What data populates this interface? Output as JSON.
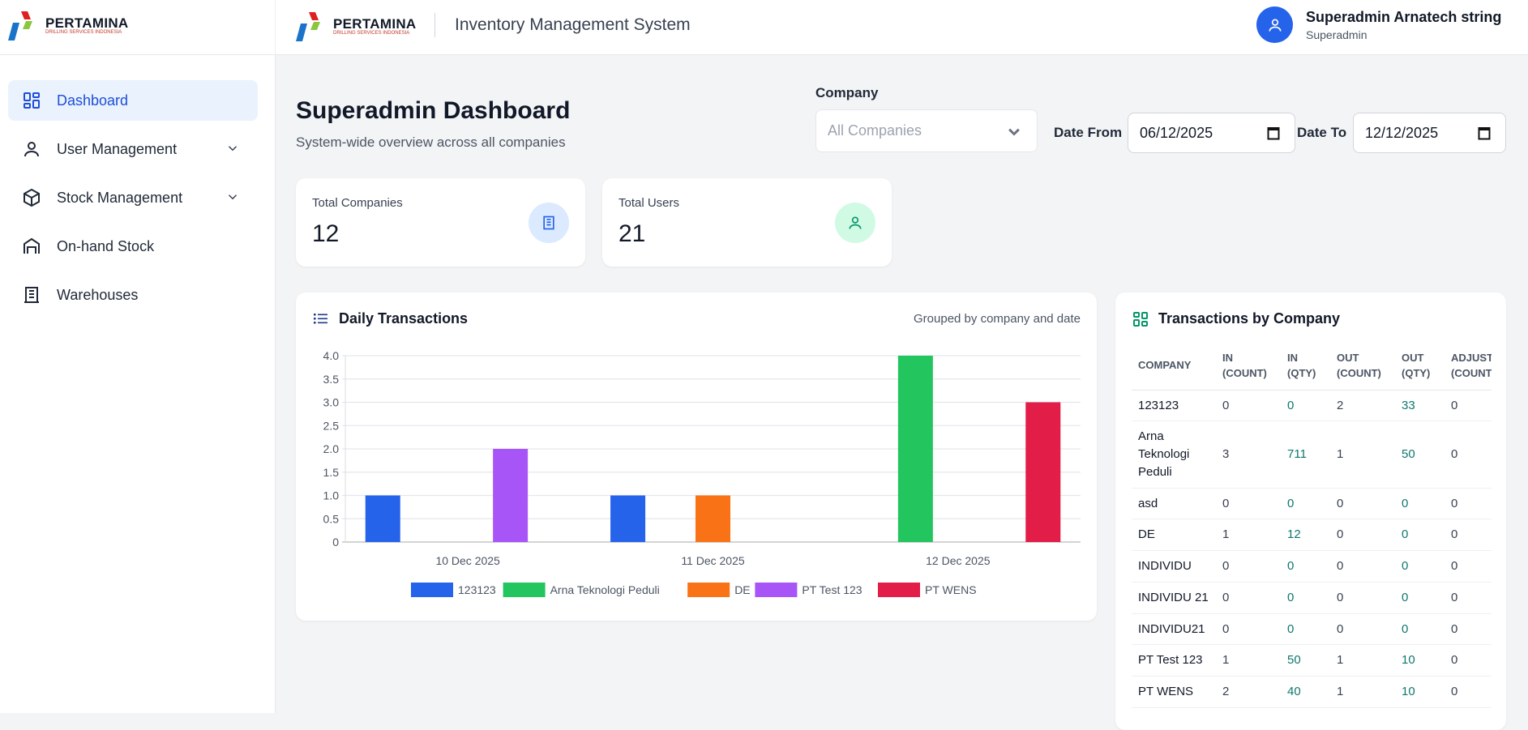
{
  "brand": {
    "name": "PERTAMINA",
    "tagline": "DRILLING SERVICES INDONESIA"
  },
  "header": {
    "app_title": "Inventory Management System",
    "user_name": "Superadmin Arnatech string",
    "user_role": "Superadmin"
  },
  "sidebar": {
    "items": [
      {
        "label": "Dashboard",
        "icon": "dashboard-icon",
        "active": true
      },
      {
        "label": "User Management",
        "icon": "user-icon",
        "expandable": true
      },
      {
        "label": "Stock Management",
        "icon": "box-icon",
        "expandable": true
      },
      {
        "label": "On-hand Stock",
        "icon": "warehouse-icon"
      },
      {
        "label": "Warehouses",
        "icon": "building-icon"
      }
    ]
  },
  "page": {
    "title": "Superadmin Dashboard",
    "subtitle": "System-wide overview across all companies"
  },
  "filters": {
    "company_label": "Company",
    "company_value": "All Companies",
    "date_from_label": "Date From",
    "date_from": "06/12/2025",
    "date_to_label": "Date To",
    "date_to": "12/12/2025"
  },
  "stats": [
    {
      "label": "Total Companies",
      "value": "12",
      "icon": "building-icon"
    },
    {
      "label": "Total Users",
      "value": "21",
      "icon": "user-icon"
    }
  ],
  "chart_card": {
    "title": "Daily Transactions",
    "note": "Grouped by company and date"
  },
  "chart_data": {
    "type": "bar",
    "categories": [
      "10 Dec 2025",
      "11 Dec 2025",
      "12 Dec 2025"
    ],
    "series": [
      {
        "name": "123123",
        "color": "#2563eb",
        "values": [
          1,
          1,
          0
        ]
      },
      {
        "name": "Arna Teknologi Peduli",
        "color": "#22c55e",
        "values": [
          0,
          0,
          4
        ]
      },
      {
        "name": "DE",
        "color": "#f97316",
        "values": [
          0,
          1,
          0
        ]
      },
      {
        "name": "PT Test 123",
        "color": "#a855f7",
        "values": [
          2,
          0,
          0
        ]
      },
      {
        "name": "PT WENS",
        "color": "#e11d48",
        "values": [
          0,
          0,
          3
        ]
      }
    ],
    "ylim": [
      0,
      4
    ],
    "yticks": [
      "0",
      "0.5",
      "1.0",
      "1.5",
      "2.0",
      "2.5",
      "3.0",
      "3.5",
      "4.0"
    ],
    "grid": true,
    "legend": "bottom"
  },
  "table_card": {
    "title": "Transactions by Company",
    "headers": [
      [
        "COMPANY"
      ],
      [
        "IN",
        "(COUNT)"
      ],
      [
        "IN",
        "(QTY)"
      ],
      [
        "OUT",
        "(COUNT)"
      ],
      [
        "OUT",
        "(QTY)"
      ],
      [
        "ADJUST",
        "(COUNT)"
      ]
    ],
    "rows": [
      [
        "123123",
        "0",
        "0",
        "2",
        "33",
        "0"
      ],
      [
        "Arna Teknologi Peduli",
        "3",
        "711",
        "1",
        "50",
        "0"
      ],
      [
        "asd",
        "0",
        "0",
        "0",
        "0",
        "0"
      ],
      [
        "DE",
        "1",
        "12",
        "0",
        "0",
        "0"
      ],
      [
        "INDIVIDU",
        "0",
        "0",
        "0",
        "0",
        "0"
      ],
      [
        "INDIVIDU 21",
        "0",
        "0",
        "0",
        "0",
        "0"
      ],
      [
        "INDIVIDU21",
        "0",
        "0",
        "0",
        "0",
        "0"
      ],
      [
        "PT Test 123",
        "1",
        "50",
        "1",
        "10",
        "0"
      ],
      [
        "PT WENS",
        "2",
        "40",
        "1",
        "10",
        "0"
      ]
    ]
  }
}
